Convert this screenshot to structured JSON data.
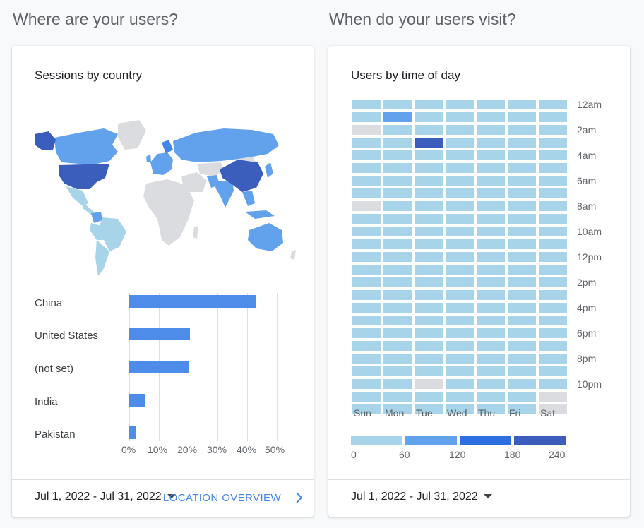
{
  "left_section": {
    "heading": "Where are your users?",
    "card_title": "Sessions by country",
    "map_colors": {
      "land": "#dadce0",
      "low": "#a8d4ea",
      "mid": "#62a1ec",
      "high": "#4486e8",
      "max": "#3b5ebd"
    },
    "countries": [
      "China",
      "United States",
      "(not set)",
      "India",
      "Pakistan"
    ],
    "x_ticks": [
      "0%",
      "10%",
      "20%",
      "30%",
      "40%",
      "50%"
    ],
    "date_range": "Jul 1, 2022 - Jul 31, 2022",
    "link_label": "LOCATION OVERVIEW"
  },
  "right_section": {
    "heading": "When do your users visit?",
    "card_title": "Users by time of day",
    "days": [
      "Sun",
      "Mon",
      "Tue",
      "Wed",
      "Thu",
      "Fri",
      "Sat"
    ],
    "hour_labels": [
      "12am",
      "2am",
      "4am",
      "6am",
      "8am",
      "10am",
      "12pm",
      "2pm",
      "4pm",
      "6pm",
      "8pm",
      "10pm"
    ],
    "legend_ticks": [
      "0",
      "60",
      "120",
      "180",
      "240"
    ],
    "legend_colors": [
      "#a8d4ea",
      "#62a1ec",
      "#2d6fe0",
      "#3b5ebd"
    ],
    "empty_color": "#dadce0",
    "date_range": "Jul 1, 2022 - Jul 31, 2022"
  },
  "chart_data": [
    {
      "type": "bar",
      "title": "Sessions by country",
      "categories": [
        "China",
        "United States",
        "(not set)",
        "India",
        "Pakistan"
      ],
      "values": [
        43,
        20.5,
        20,
        5.5,
        2.5
      ],
      "xlim": [
        0,
        50
      ],
      "x_ticks": [
        "0%",
        "10%",
        "20%",
        "30%",
        "40%",
        "50%"
      ],
      "grid": true
    },
    {
      "type": "heatmap",
      "title": "Users by time of day",
      "x": [
        "Sun",
        "Mon",
        "Tue",
        "Wed",
        "Thu",
        "Fri",
        "Sat"
      ],
      "y_ticks": [
        "12am",
        "2am",
        "4am",
        "6am",
        "8am",
        "10am",
        "12pm",
        "2pm",
        "4pm",
        "6pm",
        "8pm",
        "10pm"
      ],
      "scale": [
        0,
        240
      ],
      "rows": [
        [
          30,
          30,
          30,
          30,
          30,
          30,
          30
        ],
        [
          30,
          90,
          30,
          30,
          30,
          30,
          30
        ],
        [
          0,
          30,
          30,
          30,
          30,
          30,
          30
        ],
        [
          30,
          30,
          220,
          30,
          30,
          30,
          30
        ],
        [
          30,
          30,
          30,
          30,
          30,
          30,
          30
        ],
        [
          30,
          30,
          30,
          30,
          30,
          30,
          30
        ],
        [
          30,
          30,
          30,
          30,
          30,
          30,
          30
        ],
        [
          30,
          30,
          30,
          30,
          30,
          30,
          30
        ],
        [
          0,
          30,
          30,
          30,
          30,
          30,
          30
        ],
        [
          30,
          30,
          30,
          30,
          30,
          30,
          30
        ],
        [
          30,
          30,
          30,
          30,
          30,
          30,
          30
        ],
        [
          30,
          30,
          30,
          30,
          30,
          30,
          30
        ],
        [
          30,
          30,
          30,
          30,
          30,
          30,
          30
        ],
        [
          30,
          30,
          30,
          30,
          30,
          30,
          30
        ],
        [
          30,
          30,
          30,
          30,
          30,
          30,
          30
        ],
        [
          30,
          30,
          30,
          30,
          30,
          30,
          30
        ],
        [
          30,
          30,
          30,
          30,
          30,
          30,
          30
        ],
        [
          30,
          30,
          30,
          30,
          30,
          30,
          30
        ],
        [
          30,
          30,
          30,
          30,
          30,
          30,
          30
        ],
        [
          30,
          30,
          30,
          30,
          30,
          30,
          30
        ],
        [
          30,
          30,
          30,
          30,
          30,
          30,
          30
        ],
        [
          30,
          30,
          30,
          30,
          30,
          30,
          30
        ],
        [
          30,
          30,
          0,
          30,
          30,
          30,
          30
        ],
        [
          30,
          30,
          30,
          30,
          30,
          30,
          0
        ],
        [
          30,
          30,
          30,
          30,
          30,
          30,
          0
        ]
      ]
    }
  ]
}
